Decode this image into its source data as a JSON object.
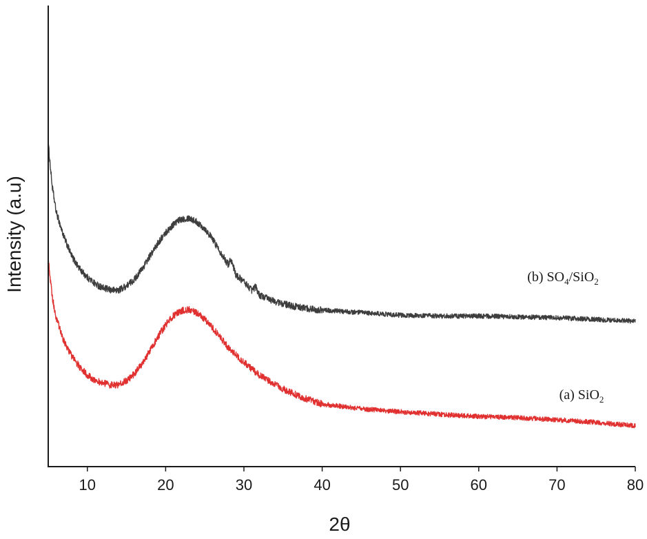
{
  "chart_data": {
    "type": "line",
    "title": "",
    "xlabel": "2θ",
    "ylabel": "Intensity (a.u)",
    "xlim": [
      5,
      80
    ],
    "ylim": [
      0,
      100
    ],
    "x_ticks": [
      10,
      20,
      30,
      40,
      50,
      60,
      70,
      80
    ],
    "y_ticks_shown": false,
    "grid": false,
    "legend": "none",
    "series": [
      {
        "name": "(b) SO4/SiO2",
        "label_main": "(b) SO",
        "label_sub1": "4",
        "label_mid": "/SiO",
        "label_sub2": "2",
        "color": "#3d3d3d",
        "x": [
          5,
          5.5,
          6,
          7,
          8,
          9,
          10,
          11,
          12,
          13,
          14,
          15,
          16,
          17,
          18,
          19,
          20,
          21,
          22,
          23,
          24,
          25,
          26,
          27,
          28,
          28.3,
          29,
          30,
          31,
          31.5,
          32,
          34,
          36,
          38,
          40,
          45,
          50,
          55,
          60,
          65,
          70,
          75,
          80
        ],
        "y": [
          76,
          66,
          60,
          54,
          49.5,
          46.5,
          44.5,
          43,
          42,
          41.5,
          41.5,
          42.5,
          44,
          46.5,
          49.5,
          52.5,
          55,
          57,
          58.2,
          58.5,
          57.5,
          56,
          53.5,
          50.5,
          47.5,
          49,
          45,
          43.5,
          41.5,
          42.3,
          40.3,
          38.8,
          37.8,
          37.2,
          36.8,
          36.2,
          35.6,
          35.4,
          35.4,
          35.2,
          35,
          34.6,
          34.2
        ]
      },
      {
        "name": "(a) SiO2",
        "label_main": "(a) SiO",
        "label_sub1": "2",
        "color": "#e03030",
        "x": [
          5,
          5.5,
          6,
          7,
          8,
          9,
          10,
          11,
          12,
          13,
          14,
          15,
          16,
          17,
          18,
          19,
          20,
          21,
          22,
          23,
          24,
          25,
          26,
          27,
          28,
          30,
          32,
          34,
          36,
          38,
          40,
          45,
          50,
          55,
          60,
          65,
          70,
          75,
          80
        ],
        "y": [
          49,
          40,
          35,
          29.5,
          26,
          23.5,
          21.5,
          20.3,
          19.6,
          19.2,
          19.3,
          20.2,
          21.8,
          24.2,
          27.2,
          30.5,
          33.3,
          35.5,
          36.7,
          36.9,
          36.1,
          34.6,
          32.6,
          30.3,
          28,
          24.5,
          21.5,
          19.2,
          17.4,
          15.9,
          14.7,
          13.6,
          12.9,
          12.3,
          11.8,
          11.5,
          11,
          10.4,
          9.6
        ]
      }
    ]
  }
}
